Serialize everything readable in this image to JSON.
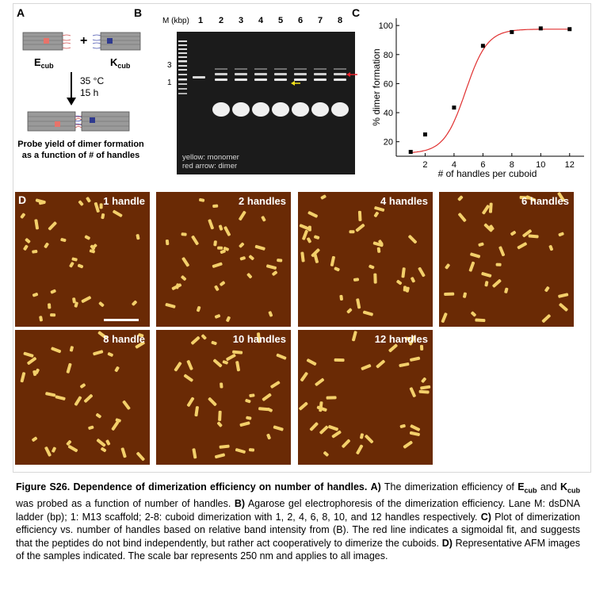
{
  "panelA": {
    "letter": "A",
    "ecub_main": "E",
    "ecub_sub": "cub",
    "kcub_main": "K",
    "kcub_sub": "cub",
    "plus": "+",
    "temp": "35 °C",
    "time": "15 h",
    "probe_line1": "Probe yield of dimer formation",
    "probe_line2": "as a function of # of handles",
    "colors": {
      "ecub_box": "#e8736a",
      "kcub_box": "#2f3a8f",
      "arrow": "#000000"
    }
  },
  "panelB": {
    "letter": "B",
    "marker_header": "M (kbp)",
    "lanes": [
      "1",
      "2",
      "3",
      "4",
      "5",
      "6",
      "7",
      "8"
    ],
    "ladder_labels": [
      "3",
      "1"
    ],
    "legend_line1": "yellow: monomer",
    "legend_line2": "red arrow: dimer",
    "colors": {
      "monomer_arrow": "#f2e21a",
      "dimer_arrow": "#e8202a",
      "gel_bg": "#1b1b1b"
    }
  },
  "panelC": {
    "letter": "C",
    "fit_color": "#e03030"
  },
  "chart_data": {
    "type": "scatter",
    "title": "",
    "xlabel": "# of handles per cuboid",
    "ylabel": "% dimer formation",
    "xlim": [
      0,
      13
    ],
    "ylim": [
      10,
      105
    ],
    "xticks": [
      2,
      4,
      6,
      8,
      10,
      12
    ],
    "yticks": [
      20,
      40,
      60,
      80,
      100
    ],
    "series": [
      {
        "x": [
          1,
          2,
          4,
          6,
          8,
          10,
          12
        ],
        "y": [
          13,
          25,
          43.5,
          86,
          95.5,
          98,
          97.5
        ]
      }
    ],
    "fit": {
      "kind": "sigmoidal",
      "bottom": 12,
      "top": 97.5,
      "x0": 4.8,
      "slope": 0.75
    }
  },
  "panelD": {
    "letter": "D",
    "images": [
      {
        "label": "1 handle"
      },
      {
        "label": "2 handles"
      },
      {
        "label": "4 handles"
      },
      {
        "label": "6 handles"
      },
      {
        "label": "8 handle"
      },
      {
        "label": "10 handles"
      },
      {
        "label": "12 handles"
      }
    ],
    "colors": {
      "bg": "#6a2a05",
      "particle": "#f3cf6a"
    }
  },
  "caption": {
    "title": "Figure S26. Dependence of dimerization efficiency on number of handles.",
    "a_label": "A)",
    "a_text1": "The dimerization efficiency of",
    "ecub_main": "E",
    "ecub_sub": "cub",
    "and": "and",
    "kcub_main": "K",
    "kcub_sub": "cub",
    "a_text2": "was probed as a function of number of handles.",
    "b_label": "B)",
    "b_text": "Agarose gel electrophoresis of the dimerization efficiency. Lane M: dsDNA ladder (bp); 1: M13 scaffold; 2-8: cuboid dimerization with 1, 2, 4, 6, 8, 10, and 12 handles respectively.",
    "c_label": "C)",
    "c_text": "Plot of dimerization efficiency vs. number of handles based on relative band intensity from (B). The red line indicates a sigmoidal fit, and suggests that the peptides do not bind independently, but rather act cooperatively to dimerize the cuboids.",
    "d_label": "D)",
    "d_text": "Representative AFM images of the samples indicated. The scale bar represents 250 nm and applies to all images."
  }
}
